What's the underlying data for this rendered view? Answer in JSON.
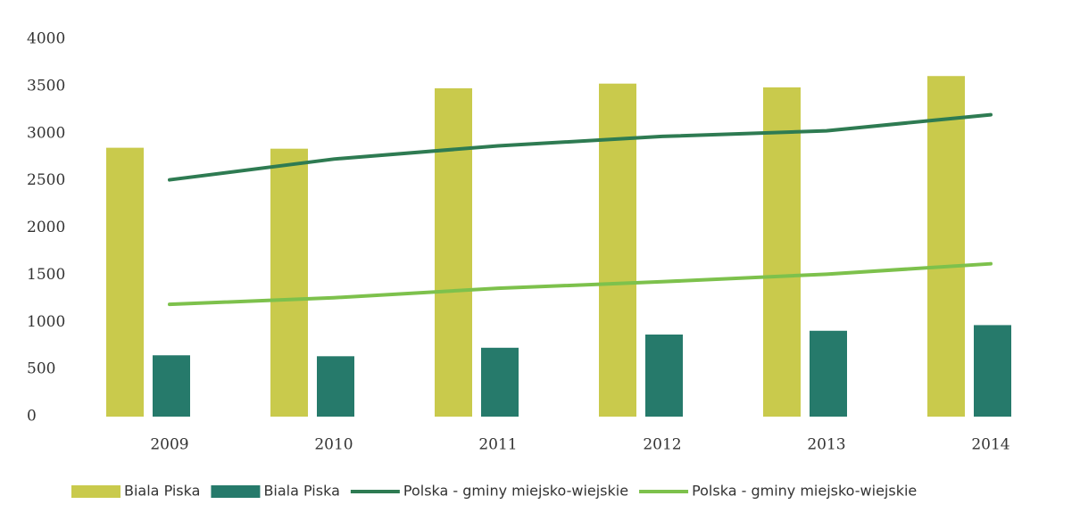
{
  "chart_data": {
    "type": "bar",
    "categories": [
      "2009",
      "2010",
      "2011",
      "2012",
      "2013",
      "2014"
    ],
    "series": [
      {
        "name": "Biala Piska",
        "type": "bar",
        "color": "#c9ca4c",
        "values": [
          2850,
          2840,
          3480,
          3530,
          3490,
          3610
        ]
      },
      {
        "name": "Biala Piska",
        "type": "bar",
        "color": "#267a6b",
        "values": [
          650,
          640,
          730,
          870,
          910,
          970
        ]
      },
      {
        "name": "Polska - gminy miejsko-wiejskie",
        "type": "line",
        "color": "#2e7b52",
        "values": [
          2510,
          2730,
          2870,
          2970,
          3030,
          3200
        ]
      },
      {
        "name": "Polska - gminy miejsko-wiejskie",
        "type": "line",
        "color": "#7dc14c",
        "values": [
          1190,
          1260,
          1360,
          1430,
          1510,
          1620
        ]
      }
    ],
    "ylim": [
      0,
      4000
    ],
    "yticks": [
      0,
      500,
      1000,
      1500,
      2000,
      2500,
      3000,
      3500,
      4000
    ],
    "grid": false,
    "legend": "bottom"
  }
}
